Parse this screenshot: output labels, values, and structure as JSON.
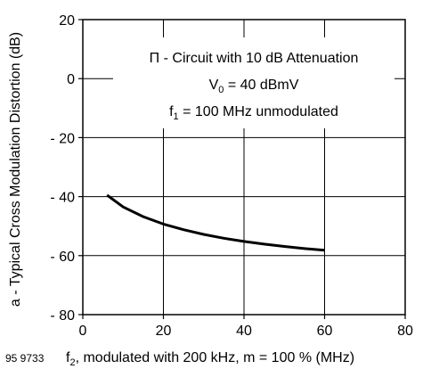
{
  "chart_data": {
    "type": "line",
    "ylabel": "a - Typical Cross Modulation Distortion (dB)",
    "xlabel_main": "f",
    "xlabel_sub": "2",
    "xlabel_rest": ", modulated with 200 kHz, m = 100 % (MHz)",
    "figure_code": "95 9733",
    "xlim": [
      0,
      80
    ],
    "ylim": [
      -80,
      20
    ],
    "x_ticks": [
      0,
      20,
      40,
      60,
      80
    ],
    "x_tick_labels": [
      "0",
      "20",
      "40",
      "60",
      "80"
    ],
    "y_ticks": [
      20,
      0,
      -20,
      -40,
      -60,
      -80
    ],
    "y_tick_labels": [
      "20",
      "0",
      "- 20",
      "- 40",
      "- 60",
      "- 80"
    ],
    "grid": true,
    "annotations": {
      "line1": "Π - Circuit with 10 dB Attenuation",
      "line2_main": "V",
      "line2_sub": "0",
      "line2_rest": " = 40 dBmV",
      "line3_main": "f",
      "line3_sub": "1",
      "line3_rest": " = 100 MHz unmodulated"
    },
    "series": [
      {
        "x": [
          6,
          10,
          15,
          20,
          25,
          30,
          35,
          40,
          45,
          50,
          55,
          60
        ],
        "y": [
          -39.5,
          -43.5,
          -46.8,
          -49.3,
          -51.2,
          -52.8,
          -54.1,
          -55.2,
          -56.1,
          -56.9,
          -57.6,
          -58.2
        ]
      }
    ]
  }
}
